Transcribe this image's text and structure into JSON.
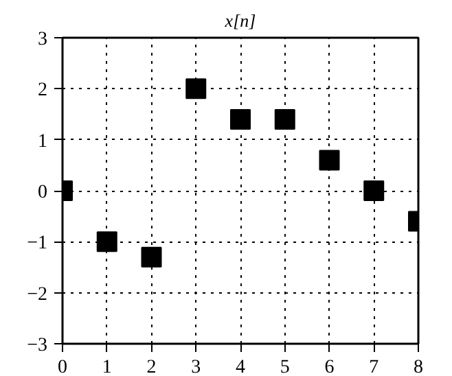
{
  "chart_data": {
    "type": "scatter",
    "title": "x[n]",
    "x": [
      0,
      1,
      2,
      3,
      4,
      5,
      6,
      7,
      8
    ],
    "values": [
      0,
      -1,
      -1.3,
      2,
      1.4,
      1.4,
      0.6,
      0,
      -0.6
    ],
    "color": "#000000",
    "marker": "square",
    "xlim": [
      0,
      8
    ],
    "ylim": [
      -3,
      3
    ],
    "xticks": [
      0,
      1,
      2,
      3,
      4,
      5,
      6,
      7,
      8
    ],
    "yticks": [
      -3,
      -2,
      -1,
      0,
      1,
      2,
      3
    ],
    "grid": true
  }
}
